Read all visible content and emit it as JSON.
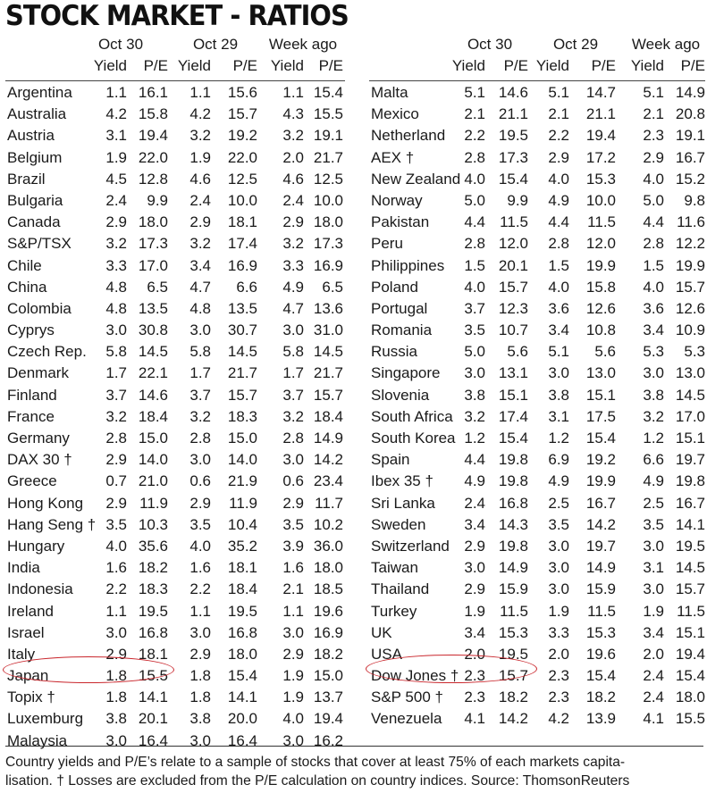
{
  "title": "STOCK MARKET - RATIOS",
  "headers": {
    "groups": [
      "Oct 30",
      "Oct 29",
      "Week ago"
    ],
    "sub": [
      "Yield",
      "P/E",
      "Yield",
      "P/E",
      "Yield",
      "P/E"
    ]
  },
  "left_rows": [
    {
      "name": "Argentina",
      "vals": [
        "1.1",
        "16.1",
        "1.1",
        "15.6",
        "1.1",
        "15.4"
      ]
    },
    {
      "name": "Australia",
      "vals": [
        "4.2",
        "15.8",
        "4.2",
        "15.7",
        "4.3",
        "15.5"
      ]
    },
    {
      "name": "Austria",
      "vals": [
        "3.1",
        "19.4",
        "3.2",
        "19.2",
        "3.2",
        "19.1"
      ]
    },
    {
      "name": "Belgium",
      "vals": [
        "1.9",
        "22.0",
        "1.9",
        "22.0",
        "2.0",
        "21.7"
      ]
    },
    {
      "name": "Brazil",
      "vals": [
        "4.5",
        "12.8",
        "4.6",
        "12.5",
        "4.6",
        "12.5"
      ]
    },
    {
      "name": "Bulgaria",
      "vals": [
        "2.4",
        "9.9",
        "2.4",
        "10.0",
        "2.4",
        "10.0"
      ]
    },
    {
      "name": "Canada",
      "vals": [
        "2.9",
        "18.0",
        "2.9",
        "18.1",
        "2.9",
        "18.0"
      ]
    },
    {
      "name": "S&P/TSX",
      "vals": [
        "3.2",
        "17.3",
        "3.2",
        "17.4",
        "3.2",
        "17.3"
      ]
    },
    {
      "name": "Chile",
      "vals": [
        "3.3",
        "17.0",
        "3.4",
        "16.9",
        "3.3",
        "16.9"
      ]
    },
    {
      "name": "China",
      "vals": [
        "4.8",
        "6.5",
        "4.7",
        "6.6",
        "4.9",
        "6.5"
      ]
    },
    {
      "name": "Colombia",
      "vals": [
        "4.8",
        "13.5",
        "4.8",
        "13.5",
        "4.7",
        "13.6"
      ]
    },
    {
      "name": "Cyprys",
      "vals": [
        "3.0",
        "30.8",
        "3.0",
        "30.7",
        "3.0",
        "31.0"
      ]
    },
    {
      "name": "Czech Rep.",
      "vals": [
        "5.8",
        "14.5",
        "5.8",
        "14.5",
        "5.8",
        "14.5"
      ]
    },
    {
      "name": "Denmark",
      "vals": [
        "1.7",
        "22.1",
        "1.7",
        "21.7",
        "1.7",
        "21.7"
      ]
    },
    {
      "name": "Finland",
      "vals": [
        "3.7",
        "14.6",
        "3.7",
        "15.7",
        "3.7",
        "15.7"
      ]
    },
    {
      "name": "France",
      "vals": [
        "3.2",
        "18.4",
        "3.2",
        "18.3",
        "3.2",
        "18.4"
      ]
    },
    {
      "name": "Germany",
      "vals": [
        "2.8",
        "15.0",
        "2.8",
        "15.0",
        "2.8",
        "14.9"
      ]
    },
    {
      "name": "DAX 30 †",
      "vals": [
        "2.9",
        "14.0",
        "3.0",
        "14.0",
        "3.0",
        "14.2"
      ]
    },
    {
      "name": "Greece",
      "vals": [
        "0.7",
        "21.0",
        "0.6",
        "21.9",
        "0.6",
        "23.4"
      ]
    },
    {
      "name": "Hong Kong",
      "vals": [
        "2.9",
        "11.9",
        "2.9",
        "11.9",
        "2.9",
        "11.7"
      ]
    },
    {
      "name": "Hang Seng †",
      "vals": [
        "3.5",
        "10.3",
        "3.5",
        "10.4",
        "3.5",
        "10.2"
      ]
    },
    {
      "name": "Hungary",
      "vals": [
        "4.0",
        "35.6",
        "4.0",
        "35.2",
        "3.9",
        "36.0"
      ]
    },
    {
      "name": "India",
      "vals": [
        "1.6",
        "18.2",
        "1.6",
        "18.1",
        "1.6",
        "18.0"
      ]
    },
    {
      "name": "Indonesia",
      "vals": [
        "2.2",
        "18.3",
        "2.2",
        "18.4",
        "2.1",
        "18.5"
      ]
    },
    {
      "name": "Ireland",
      "vals": [
        "1.1",
        "19.5",
        "1.1",
        "19.5",
        "1.1",
        "19.6"
      ]
    },
    {
      "name": "Israel",
      "vals": [
        "3.0",
        "16.8",
        "3.0",
        "16.8",
        "3.0",
        "16.9"
      ]
    },
    {
      "name": "Italy",
      "vals": [
        "2.9",
        "18.1",
        "2.9",
        "18.0",
        "2.9",
        "18.2"
      ]
    },
    {
      "name": "Japan",
      "vals": [
        "1.8",
        "15.5",
        "1.8",
        "15.4",
        "1.9",
        "15.0"
      ]
    },
    {
      "name": "Topix †",
      "vals": [
        "1.8",
        "14.1",
        "1.8",
        "14.1",
        "1.9",
        "13.7"
      ]
    },
    {
      "name": "Luxemburg",
      "vals": [
        "3.8",
        "20.1",
        "3.8",
        "20.0",
        "4.0",
        "19.4"
      ]
    },
    {
      "name": "Malaysia",
      "vals": [
        "3.0",
        "16.4",
        "3.0",
        "16.4",
        "3.0",
        "16.2"
      ]
    }
  ],
  "right_rows": [
    {
      "name": "Malta",
      "vals": [
        "5.1",
        "14.6",
        "5.1",
        "14.7",
        "5.1",
        "14.9"
      ]
    },
    {
      "name": "Mexico",
      "vals": [
        "2.1",
        "21.1",
        "2.1",
        "21.1",
        "2.1",
        "20.8"
      ]
    },
    {
      "name": "Netherland",
      "vals": [
        "2.2",
        "19.5",
        "2.2",
        "19.4",
        "2.3",
        "19.1"
      ]
    },
    {
      "name": "AEX †",
      "vals": [
        "2.8",
        "17.3",
        "2.9",
        "17.2",
        "2.9",
        "16.7"
      ]
    },
    {
      "name": "New Zealand",
      "vals": [
        "4.0",
        "15.4",
        "4.0",
        "15.3",
        "4.0",
        "15.2"
      ]
    },
    {
      "name": "Norway",
      "vals": [
        "5.0",
        "9.9",
        "4.9",
        "10.0",
        "5.0",
        "9.8"
      ]
    },
    {
      "name": "Pakistan",
      "vals": [
        "4.4",
        "11.5",
        "4.4",
        "11.5",
        "4.4",
        "11.6"
      ]
    },
    {
      "name": "Peru",
      "vals": [
        "2.8",
        "12.0",
        "2.8",
        "12.0",
        "2.8",
        "12.2"
      ]
    },
    {
      "name": "Philippines",
      "vals": [
        "1.5",
        "20.1",
        "1.5",
        "19.9",
        "1.5",
        "19.9"
      ]
    },
    {
      "name": "Poland",
      "vals": [
        "4.0",
        "15.7",
        "4.0",
        "15.8",
        "4.0",
        "15.7"
      ]
    },
    {
      "name": "Portugal",
      "vals": [
        "3.7",
        "12.3",
        "3.6",
        "12.6",
        "3.6",
        "12.6"
      ]
    },
    {
      "name": "Romania",
      "vals": [
        "3.5",
        "10.7",
        "3.4",
        "10.8",
        "3.4",
        "10.9"
      ]
    },
    {
      "name": "Russia",
      "vals": [
        "5.0",
        "5.6",
        "5.1",
        "5.6",
        "5.3",
        "5.3"
      ]
    },
    {
      "name": "Singapore",
      "vals": [
        "3.0",
        "13.1",
        "3.0",
        "13.0",
        "3.0",
        "13.0"
      ]
    },
    {
      "name": "Slovenia",
      "vals": [
        "3.8",
        "15.1",
        "3.8",
        "15.1",
        "3.8",
        "14.5"
      ]
    },
    {
      "name": "South Africa",
      "vals": [
        "3.2",
        "17.4",
        "3.1",
        "17.5",
        "3.2",
        "17.0"
      ]
    },
    {
      "name": "South Korea",
      "vals": [
        "1.2",
        "15.4",
        "1.2",
        "15.4",
        "1.2",
        "15.1"
      ]
    },
    {
      "name": "Spain",
      "vals": [
        "4.4",
        "19.8",
        "6.9",
        "19.2",
        "6.6",
        "19.7"
      ]
    },
    {
      "name": "Ibex 35 †",
      "vals": [
        "4.9",
        "19.8",
        "4.9",
        "19.9",
        "4.9",
        "19.8"
      ]
    },
    {
      "name": "Sri Lanka",
      "vals": [
        "2.4",
        "16.8",
        "2.5",
        "16.7",
        "2.5",
        "16.7"
      ]
    },
    {
      "name": "Sweden",
      "vals": [
        "3.4",
        "14.3",
        "3.5",
        "14.2",
        "3.5",
        "14.1"
      ]
    },
    {
      "name": "Switzerland",
      "vals": [
        "2.9",
        "19.8",
        "3.0",
        "19.7",
        "3.0",
        "19.5"
      ]
    },
    {
      "name": "Taiwan",
      "vals": [
        "3.0",
        "14.9",
        "3.0",
        "14.9",
        "3.1",
        "14.5"
      ]
    },
    {
      "name": "Thailand",
      "vals": [
        "2.9",
        "15.9",
        "3.0",
        "15.9",
        "3.0",
        "15.7"
      ]
    },
    {
      "name": "Turkey",
      "vals": [
        "1.9",
        "11.5",
        "1.9",
        "11.5",
        "1.9",
        "11.5"
      ]
    },
    {
      "name": "UK",
      "vals": [
        "3.4",
        "15.3",
        "3.3",
        "15.3",
        "3.4",
        "15.1"
      ]
    },
    {
      "name": "USA",
      "vals": [
        "2.0",
        "19.5",
        "2.0",
        "19.6",
        "2.0",
        "19.4"
      ]
    },
    {
      "name": "Dow Jones †",
      "vals": [
        "2.3",
        "15.7",
        "2.3",
        "15.4",
        "2.4",
        "15.4"
      ]
    },
    {
      "name": "S&P 500 †",
      "vals": [
        "2.3",
        "18.2",
        "2.3",
        "18.2",
        "2.4",
        "18.0"
      ]
    },
    {
      "name": "Venezuela",
      "vals": [
        "4.1",
        "14.2",
        "4.2",
        "13.9",
        "4.1",
        "15.5"
      ]
    }
  ],
  "footer_line1": "Country yields and P/E’s relate to a sample of stocks that cover at least 75% of each markets capita-",
  "footer_line2": "lisation. † Losses are excluded from the P/E calculation on country indices. Source: ThomsonReuters",
  "colors": {
    "highlight_circle": "#c9262c",
    "text": "#1a1a1a"
  }
}
